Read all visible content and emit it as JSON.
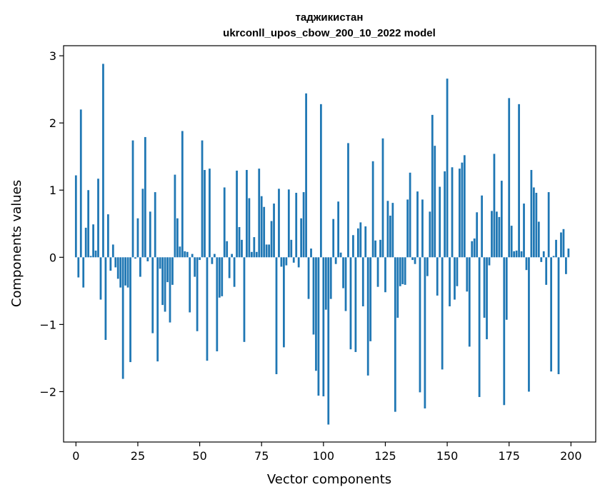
{
  "chart_data": {
    "type": "bar",
    "title": "таджикистан",
    "subtitle": "ukrconll_upos_cbow_200_10_2022 model",
    "xlabel": "Vector components",
    "ylabel": "Components values",
    "xlim": [
      -5,
      210
    ],
    "ylim": [
      -2.75,
      3.15
    ],
    "xticks": [
      0,
      25,
      50,
      75,
      100,
      125,
      150,
      175,
      200
    ],
    "yticks": [
      -2,
      -1,
      0,
      1,
      2,
      3
    ],
    "xtick_labels": [
      "0",
      "25",
      "50",
      "75",
      "100",
      "125",
      "150",
      "175",
      "200"
    ],
    "ytick_labels": [
      "−2",
      "−1",
      "0",
      "1",
      "2",
      "3"
    ],
    "grid": false,
    "color": "#1f77b4",
    "x": [
      0,
      1,
      2,
      3,
      4,
      5,
      6,
      7,
      8,
      9,
      10,
      11,
      12,
      13,
      14,
      15,
      16,
      17,
      18,
      19,
      20,
      21,
      22,
      23,
      24,
      25,
      26,
      27,
      28,
      29,
      30,
      31,
      32,
      33,
      34,
      35,
      36,
      37,
      38,
      39,
      40,
      41,
      42,
      43,
      44,
      45,
      46,
      47,
      48,
      49,
      50,
      51,
      52,
      53,
      54,
      55,
      56,
      57,
      58,
      59,
      60,
      61,
      62,
      63,
      64,
      65,
      66,
      67,
      68,
      69,
      70,
      71,
      72,
      73,
      74,
      75,
      76,
      77,
      78,
      79,
      80,
      81,
      82,
      83,
      84,
      85,
      86,
      87,
      88,
      89,
      90,
      91,
      92,
      93,
      94,
      95,
      96,
      97,
      98,
      99,
      100,
      101,
      102,
      103,
      104,
      105,
      106,
      107,
      108,
      109,
      110,
      111,
      112,
      113,
      114,
      115,
      116,
      117,
      118,
      119,
      120,
      121,
      122,
      123,
      124,
      125,
      126,
      127,
      128,
      129,
      130,
      131,
      132,
      133,
      134,
      135,
      136,
      137,
      138,
      139,
      140,
      141,
      142,
      143,
      144,
      145,
      146,
      147,
      148,
      149,
      150,
      151,
      152,
      153,
      154,
      155,
      156,
      157,
      158,
      159,
      160,
      161,
      162,
      163,
      164,
      165,
      166,
      167,
      168,
      169,
      170,
      171,
      172,
      173,
      174,
      175,
      176,
      177,
      178,
      179,
      180,
      181,
      182,
      183,
      184,
      185,
      186,
      187,
      188,
      189,
      190,
      191,
      192,
      193,
      194,
      195,
      196,
      197,
      198,
      199
    ],
    "values": [
      1.22,
      -0.3,
      2.2,
      -0.45,
      0.44,
      1.0,
      0.02,
      0.49,
      0.1,
      1.17,
      -0.63,
      2.88,
      -1.23,
      0.64,
      -0.2,
      0.19,
      -0.15,
      -0.32,
      -0.45,
      -1.81,
      -0.42,
      -0.45,
      -1.56,
      1.74,
      -0.02,
      0.58,
      -0.29,
      1.02,
      1.79,
      -0.06,
      0.68,
      -1.13,
      0.97,
      -1.55,
      -0.17,
      -0.71,
      -0.81,
      -0.37,
      -0.97,
      -0.41,
      1.23,
      0.58,
      0.16,
      1.88,
      0.09,
      0.08,
      -0.82,
      0.05,
      -0.29,
      -1.1,
      -0.04,
      1.74,
      1.3,
      -1.54,
      1.32,
      -0.1,
      0.05,
      -1.4,
      -0.6,
      -0.58,
      1.04,
      0.24,
      -0.31,
      0.05,
      -0.44,
      1.29,
      0.45,
      0.26,
      -1.26,
      1.3,
      0.88,
      0.08,
      0.3,
      0.08,
      1.32,
      0.91,
      0.75,
      0.19,
      0.19,
      0.54,
      0.8,
      -1.74,
      1.02,
      -0.14,
      -1.34,
      -0.12,
      1.01,
      0.26,
      -0.08,
      0.96,
      -0.15,
      0.58,
      0.97,
      2.44,
      -0.62,
      0.13,
      -1.15,
      -1.69,
      -2.06,
      2.28,
      -2.07,
      -0.78,
      -2.49,
      -0.62,
      0.57,
      -0.1,
      0.83,
      0.07,
      -0.46,
      -0.8,
      1.7,
      -1.37,
      0.33,
      -1.41,
      0.43,
      0.52,
      -0.73,
      0.46,
      -1.76,
      -1.25,
      1.43,
      0.25,
      -0.44,
      0.26,
      1.77,
      -0.52,
      0.84,
      0.62,
      0.81,
      -2.3,
      -0.9,
      -0.43,
      -0.4,
      -0.41,
      0.86,
      1.26,
      -0.04,
      -0.1,
      0.98,
      -2.01,
      0.86,
      -2.25,
      -0.28,
      0.68,
      2.12,
      1.66,
      -0.57,
      1.05,
      -1.67,
      1.28,
      2.66,
      -0.73,
      1.34,
      -0.63,
      -0.43,
      1.32,
      1.41,
      1.52,
      -0.51,
      -1.33,
      0.24,
      0.28,
      0.67,
      -2.08,
      0.92,
      -0.9,
      -1.22,
      -0.12,
      0.69,
      1.54,
      0.68,
      0.6,
      1.14,
      -2.2,
      -0.93,
      2.37,
      0.47,
      0.09,
      0.1,
      2.28,
      0.09,
      0.8,
      -0.19,
      -2.0,
      1.3,
      1.04,
      0.96,
      0.53,
      -0.07,
      0.09,
      -0.41,
      0.97,
      -1.7,
      0.02,
      0.26,
      -1.74,
      0.37,
      0.42,
      -0.25,
      0.13
    ]
  }
}
